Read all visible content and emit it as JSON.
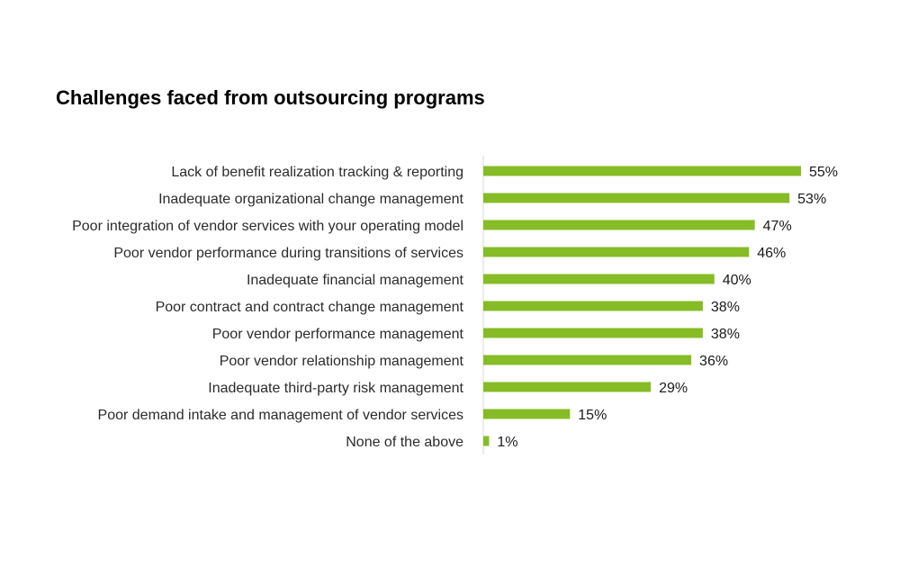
{
  "chart_data": {
    "type": "bar",
    "orientation": "horizontal",
    "title": "Challenges faced from outsourcing programs",
    "xlabel": "",
    "ylabel": "",
    "categories": [
      "Lack of benefit realization tracking & reporting",
      "Inadequate organizational change management",
      "Poor integration of vendor services with your operating model",
      "Poor vendor performance during transitions of services",
      "Inadequate financial management",
      "Poor contract and contract change management",
      "Poor vendor performance management",
      "Poor vendor relationship management",
      "Inadequate third-party risk management",
      "Poor demand intake and management of vendor services",
      "None of the above"
    ],
    "values": [
      55,
      53,
      47,
      46,
      40,
      38,
      38,
      36,
      29,
      15,
      1
    ],
    "value_labels": [
      "55%",
      "53%",
      "47%",
      "46%",
      "40%",
      "38%",
      "38%",
      "36%",
      "29%",
      "15%",
      "1%"
    ],
    "xlim": [
      0,
      55
    ],
    "grid": false,
    "legend": "none",
    "bar_color": "#86bc25",
    "axis_color": "#d9d9d9"
  }
}
